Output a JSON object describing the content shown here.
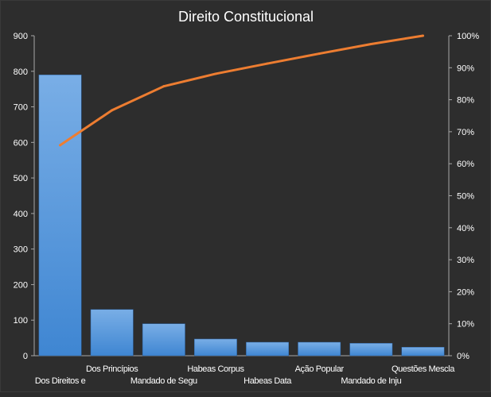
{
  "chart_data": {
    "type": "bar",
    "title": "Direito  Constitucional",
    "categories": [
      "Dos Direitos e",
      "Dos Princípios",
      "Mandado de Segu",
      "Habeas Corpus",
      "Habeas Data",
      "Ação Popular",
      "Mandado de Inju",
      "Questões Mescla"
    ],
    "series": [
      {
        "type": "bar",
        "values": [
          790,
          130,
          90,
          47,
          38,
          38,
          35,
          24
        ],
        "axis": "left"
      },
      {
        "type": "line",
        "values": [
          65.8,
          76.7,
          84.2,
          88.1,
          91.3,
          94.4,
          97.4,
          100
        ],
        "axis": "right"
      }
    ],
    "y_left": {
      "min": 0,
      "max": 900,
      "ticks": [
        0,
        100,
        200,
        300,
        400,
        500,
        600,
        700,
        800,
        900
      ]
    },
    "y_right": {
      "min": 0,
      "max": 100,
      "ticks": [
        "0%",
        "10%",
        "20%",
        "30%",
        "40%",
        "50%",
        "60%",
        "70%",
        "80%",
        "90%",
        "100%"
      ]
    },
    "grid": false,
    "legend": "none",
    "colors": {
      "bar": "#4a90d9",
      "line": "#ed7d31",
      "background": "#2d2d2d",
      "text": "#ffffff",
      "axis": "#a6a6a6"
    }
  }
}
